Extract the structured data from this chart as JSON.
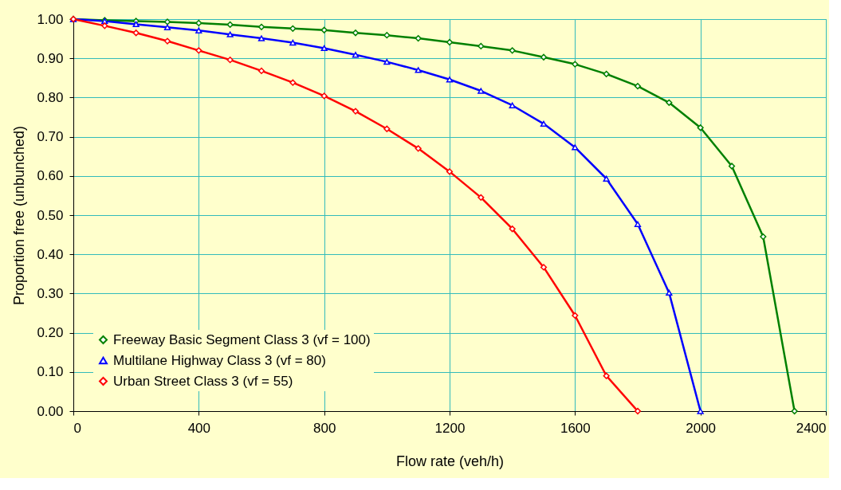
{
  "chart_data": {
    "type": "line",
    "xlabel": "Flow rate (veh/h)",
    "ylabel": "Proportion free (unbunched)",
    "xlim": [
      0,
      2400
    ],
    "xticks": [
      0,
      400,
      800,
      1200,
      1600,
      2000,
      2400
    ],
    "ylim": [
      0,
      1
    ],
    "yticks": [
      {
        "value": 0,
        "label": "0.00"
      },
      {
        "value": 0.1,
        "label": "0.10"
      },
      {
        "value": 0.2,
        "label": "0.20"
      },
      {
        "value": 0.3,
        "label": "0.30"
      },
      {
        "value": 0.4,
        "label": "0.40"
      },
      {
        "value": 0.5,
        "label": "0.50"
      },
      {
        "value": 0.6,
        "label": "0.60"
      },
      {
        "value": 0.7,
        "label": "0.70"
      },
      {
        "value": 0.8,
        "label": "0.80"
      },
      {
        "value": 0.9,
        "label": "0.90"
      },
      {
        "value": 1,
        "label": "1.00"
      }
    ],
    "grid": true,
    "legend": "bottom left",
    "line_style": "solid",
    "series": [
      {
        "name": "Freeway Basic Segment Class 3 (vf = 100)",
        "color": "#008000",
        "marker": "diamond",
        "x": [
          0,
          100,
          200,
          300,
          400,
          500,
          600,
          700,
          800,
          900,
          1000,
          1100,
          1200,
          1300,
          1400,
          1500,
          1600,
          1700,
          1800,
          1900,
          2000,
          2100,
          2200,
          2300
        ],
        "values": [
          1.0,
          0.997,
          0.995,
          0.993,
          0.99,
          0.986,
          0.98,
          0.976,
          0.972,
          0.965,
          0.959,
          0.951,
          0.941,
          0.931,
          0.92,
          0.903,
          0.885,
          0.86,
          0.829,
          0.787,
          0.723,
          0.625,
          0.445,
          0.0
        ]
      },
      {
        "name": "Multilane Highway Class 3 (vf = 80)",
        "color": "#0000ff",
        "marker": "triangle",
        "x": [
          0,
          100,
          200,
          300,
          400,
          500,
          600,
          700,
          800,
          900,
          1000,
          1100,
          1200,
          1300,
          1400,
          1500,
          1600,
          1700,
          1800,
          1900,
          2000
        ],
        "values": [
          1.0,
          0.995,
          0.987,
          0.979,
          0.971,
          0.961,
          0.951,
          0.94,
          0.926,
          0.909,
          0.891,
          0.87,
          0.846,
          0.817,
          0.78,
          0.733,
          0.673,
          0.593,
          0.477,
          0.302,
          0.0
        ]
      },
      {
        "name": "Urban Street Class 3 (vf = 55)",
        "color": "#ff0000",
        "marker": "diamond",
        "x": [
          0,
          100,
          200,
          300,
          400,
          500,
          600,
          700,
          800,
          900,
          1000,
          1100,
          1200,
          1300,
          1400,
          1500,
          1600,
          1700,
          1800
        ],
        "values": [
          1.0,
          0.983,
          0.965,
          0.944,
          0.92,
          0.896,
          0.868,
          0.838,
          0.804,
          0.765,
          0.72,
          0.67,
          0.611,
          0.545,
          0.465,
          0.367,
          0.244,
          0.09,
          0.0
        ]
      }
    ]
  }
}
